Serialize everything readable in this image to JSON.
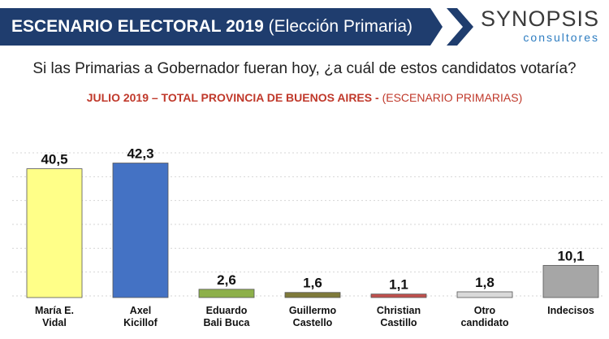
{
  "header": {
    "title_bold": "ESCENARIO ELECTORAL 2019",
    "title_light": "(Elección Primaria)",
    "logo_main": "SYNOPSIS",
    "logo_sub": "consultores"
  },
  "question": "Si las Primarias a Gobernador fueran hoy, ¿a cuál de estos candidatos votaría?",
  "subtitle_bold": "JULIO 2019 – TOTAL PROVINCIA DE BUENOS AIRES -",
  "subtitle_light": "(ESCENARIO PRIMARIAS)",
  "colors": {
    "banner": "#1f3d6e",
    "subtitle": "#c0392b"
  },
  "chart_data": {
    "type": "bar",
    "categories": [
      [
        "María E.",
        "Vidal"
      ],
      [
        "Axel",
        "Kicillof"
      ],
      [
        "Eduardo",
        "Bali Buca"
      ],
      [
        "Guillermo",
        "Castello"
      ],
      [
        "Christian",
        "Castillo"
      ],
      [
        "Otro",
        "candidato"
      ],
      [
        "Indecisos"
      ]
    ],
    "values": [
      40.5,
      42.3,
      2.6,
      1.6,
      1.1,
      1.8,
      10.1
    ],
    "value_labels": [
      "40,5",
      "42,3",
      "2,6",
      "1,6",
      "1,1",
      "1,8",
      "10,1"
    ],
    "colors": [
      "#ffff88",
      "#4472c4",
      "#8db04a",
      "#7f7a3a",
      "#c0504d",
      "#d9d9d9",
      "#a6a6a6"
    ],
    "ylim": [
      0,
      45
    ],
    "grid": true
  }
}
